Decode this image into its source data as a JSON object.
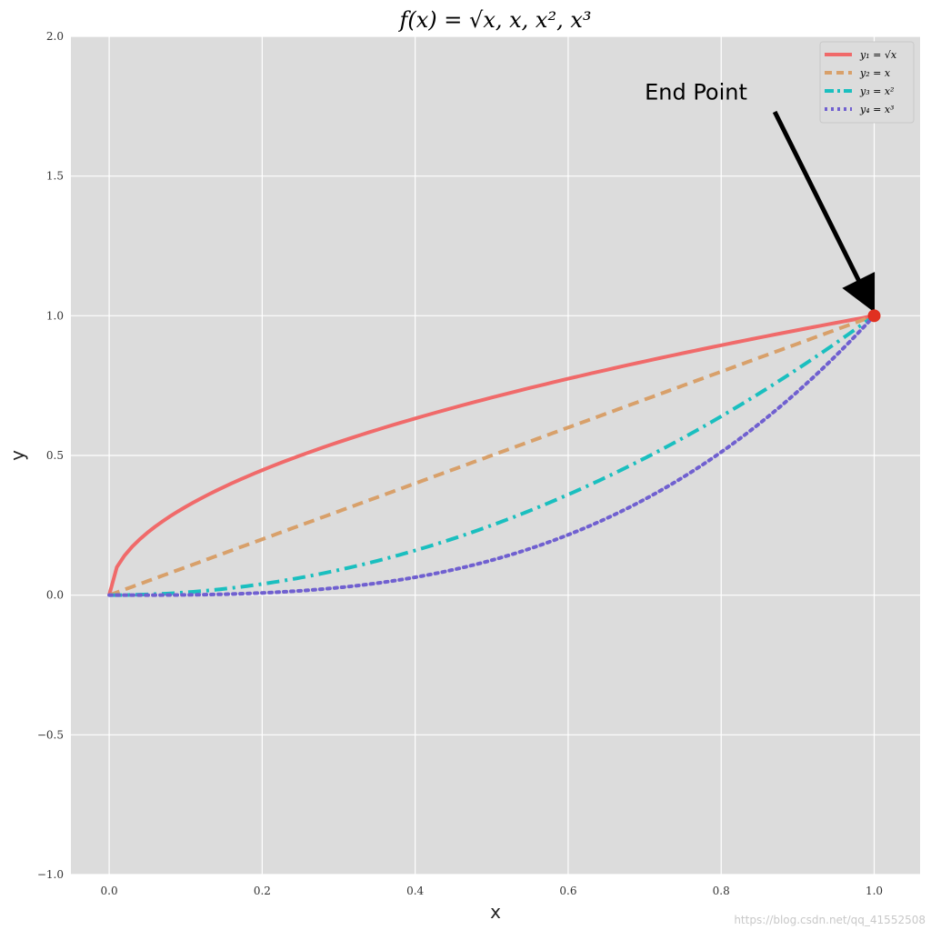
{
  "chart_data": {
    "type": "line",
    "title": "f(x) = √x, x, x², x³",
    "xlabel": "x",
    "ylabel": "y",
    "xlim": [
      -0.05,
      1.06
    ],
    "ylim": [
      -1.0,
      2.0
    ],
    "x_ticks": [
      0.0,
      0.2,
      0.4,
      0.6,
      0.8,
      1.0
    ],
    "x_tick_labels": [
      "0.0",
      "0.2",
      "0.4",
      "0.6",
      "0.8",
      "1.0"
    ],
    "y_ticks": [
      -1.0,
      -0.5,
      0.0,
      0.5,
      1.0,
      1.5,
      2.0
    ],
    "y_tick_labels": [
      "−1.0",
      "−0.5",
      "0.0",
      "0.5",
      "1.0",
      "1.5",
      "2.0"
    ],
    "grid": true,
    "background": "#dcdcdc",
    "legend_placement": "top-right",
    "x": [
      0.0,
      0.01,
      0.05,
      0.1,
      0.15,
      0.2,
      0.25,
      0.3,
      0.35,
      0.4,
      0.45,
      0.5,
      0.55,
      0.6,
      0.65,
      0.7,
      0.75,
      0.8,
      0.85,
      0.9,
      0.95,
      1.0
    ],
    "series": [
      {
        "name": "y₁ = √x",
        "function": "sqrt",
        "color": "#f06a6a",
        "style": "solid",
        "values": [
          0.0,
          0.1,
          0.224,
          0.316,
          0.387,
          0.447,
          0.5,
          0.548,
          0.592,
          0.632,
          0.671,
          0.707,
          0.742,
          0.775,
          0.806,
          0.837,
          0.866,
          0.894,
          0.922,
          0.949,
          0.975,
          1.0
        ]
      },
      {
        "name": "y₂ = x",
        "function": "linear",
        "color": "#d8a06a",
        "style": "dashed",
        "values": [
          0.0,
          0.01,
          0.05,
          0.1,
          0.15,
          0.2,
          0.25,
          0.3,
          0.35,
          0.4,
          0.45,
          0.5,
          0.55,
          0.6,
          0.65,
          0.7,
          0.75,
          0.8,
          0.85,
          0.9,
          0.95,
          1.0
        ]
      },
      {
        "name": "y₃ = x²",
        "function": "square",
        "color": "#1abfbf",
        "style": "dashdot",
        "values": [
          0.0,
          0.0001,
          0.0025,
          0.01,
          0.0225,
          0.04,
          0.0625,
          0.09,
          0.1225,
          0.16,
          0.2025,
          0.25,
          0.3025,
          0.36,
          0.4225,
          0.49,
          0.5625,
          0.64,
          0.7225,
          0.81,
          0.9025,
          1.0
        ]
      },
      {
        "name": "y₄ = x³",
        "function": "cube",
        "color": "#7060d0",
        "style": "dotted",
        "values": [
          0.0,
          1e-06,
          0.000125,
          0.001,
          0.003375,
          0.008,
          0.015625,
          0.027,
          0.042875,
          0.064,
          0.091125,
          0.125,
          0.166375,
          0.216,
          0.274625,
          0.343,
          0.421875,
          0.512,
          0.614125,
          0.729,
          0.857375,
          1.0
        ]
      }
    ],
    "end_point": {
      "x": 1.0,
      "y": 1.0,
      "color": "#e03020"
    },
    "annotation": {
      "text": "End Point",
      "text_at": {
        "x": 0.7,
        "y": 1.8
      },
      "arrow_to": {
        "x": 0.99,
        "y": 1.07
      }
    }
  },
  "watermark": "https://blog.csdn.net/qq_41552508"
}
